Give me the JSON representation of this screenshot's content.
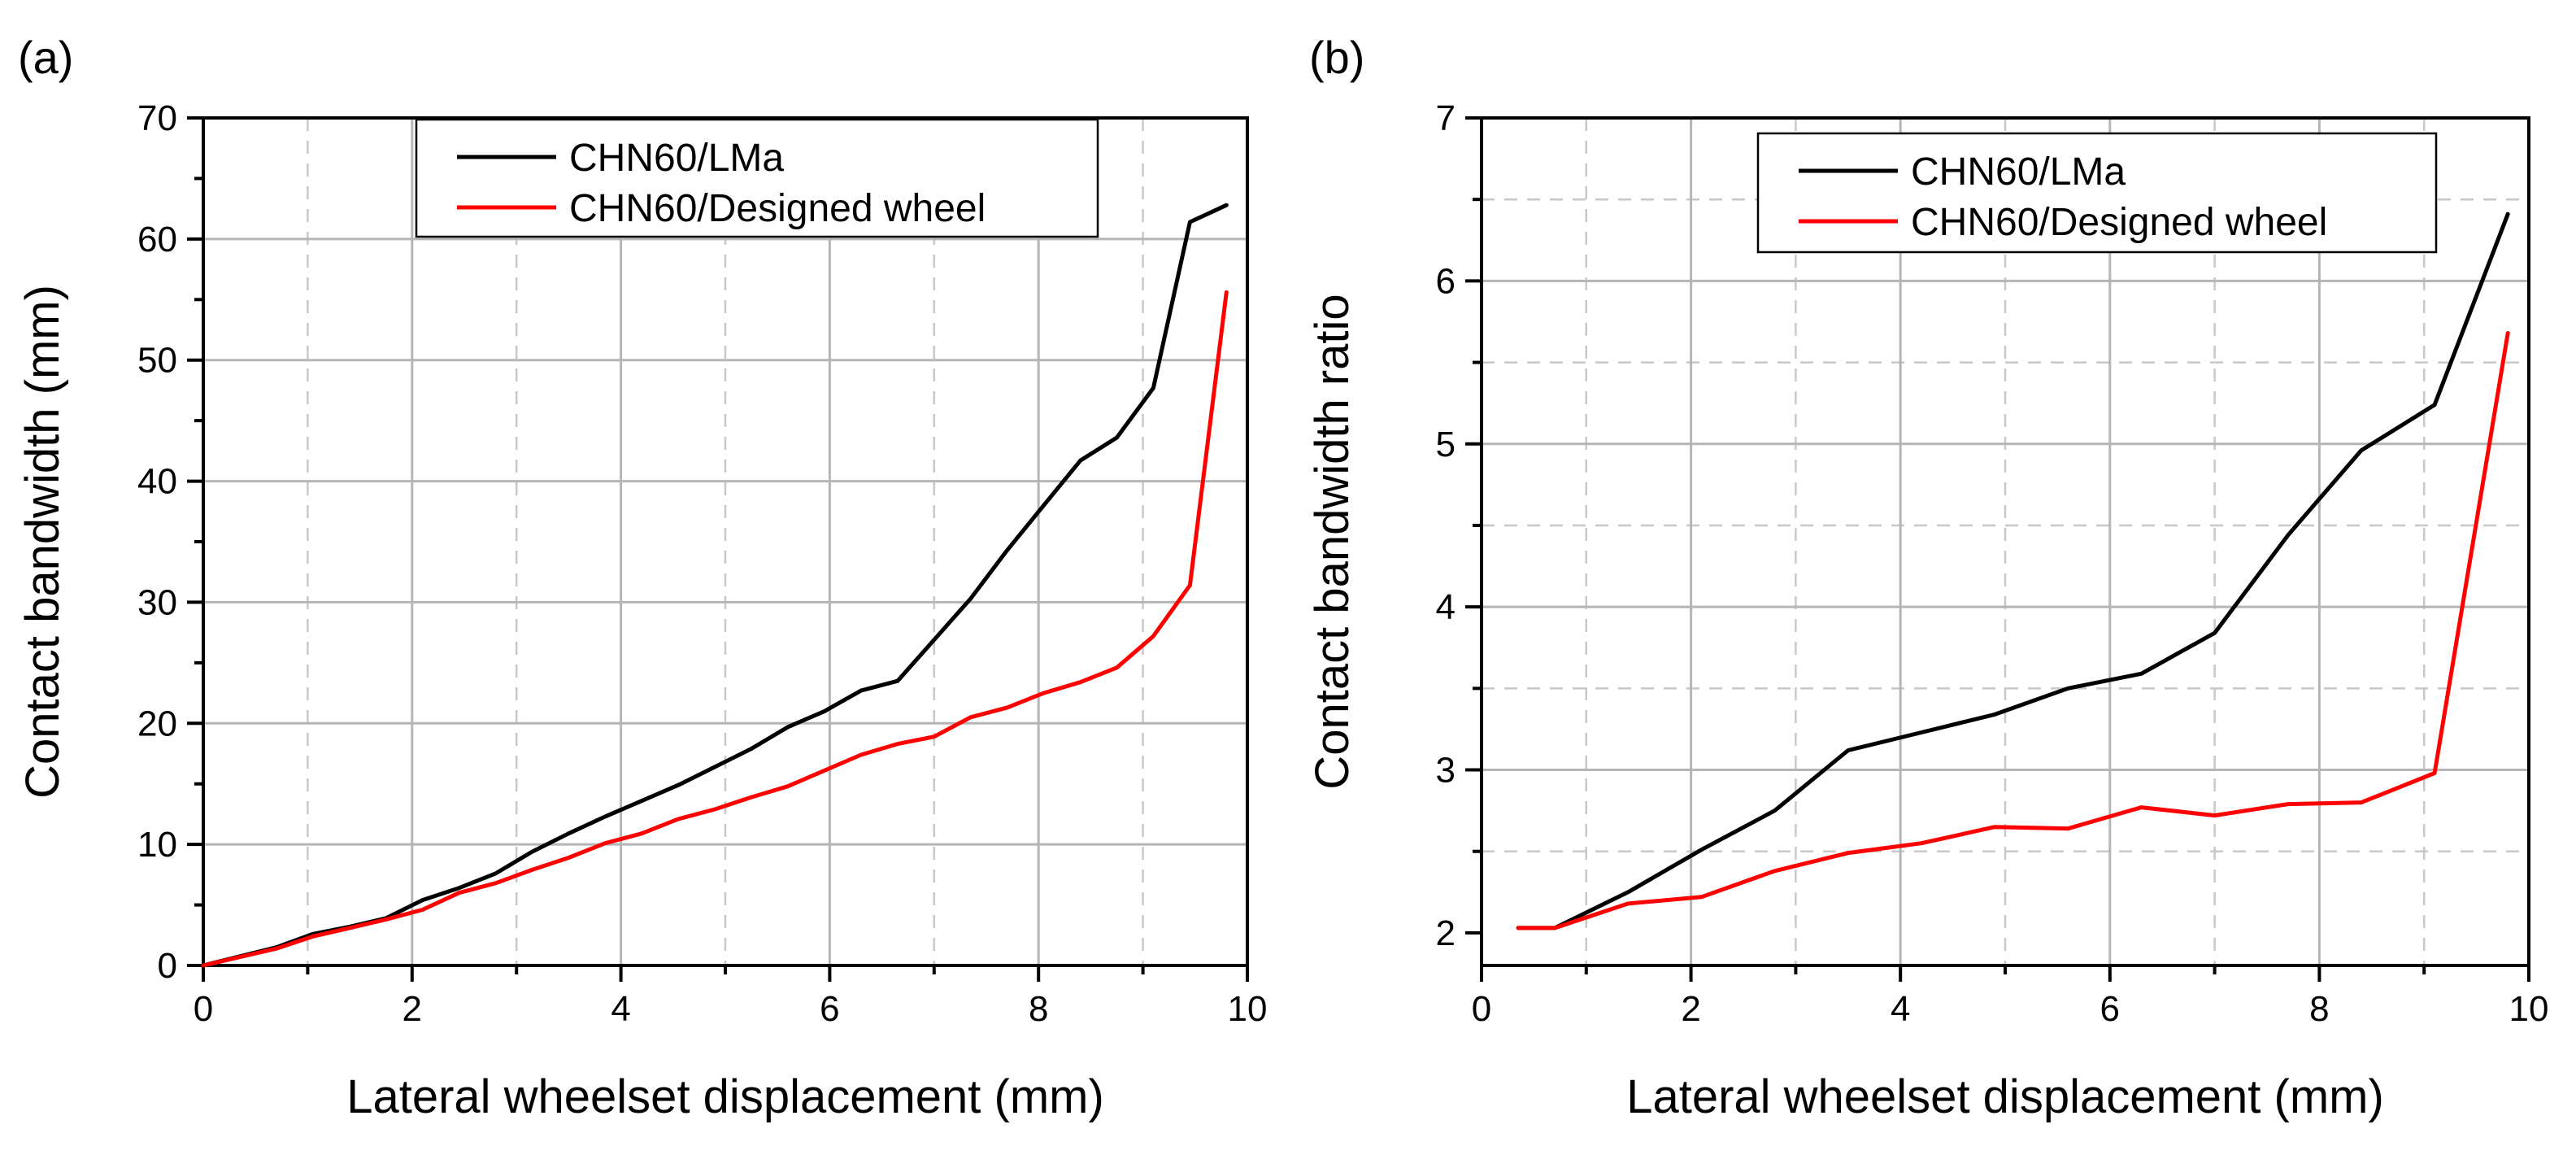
{
  "chart_data": [
    {
      "panel_label": "(a)",
      "type": "line",
      "title": "",
      "xlabel": "Lateral wheelset displacement (mm)",
      "ylabel": "Contact bandwidth (mm)",
      "xlim": [
        0,
        10
      ],
      "ylim": [
        0,
        70
      ],
      "x_ticks": [
        0,
        2,
        4,
        6,
        8,
        10
      ],
      "y_ticks": [
        0,
        10,
        20,
        30,
        40,
        50,
        60,
        70
      ],
      "x_major_grid": [
        2,
        4,
        6,
        8
      ],
      "x_minor_grid": [
        1,
        3,
        5,
        7,
        9
      ],
      "y_major_grid": [
        10,
        20,
        30,
        40,
        50,
        60
      ],
      "y_minor_grid": [],
      "grid": true,
      "legend_position": "top-center",
      "series": [
        {
          "name": "CHN60/LMa",
          "color": "#000000",
          "x": [
            0,
            0.7,
            1.05,
            1.4,
            1.75,
            2.1,
            2.45,
            2.8,
            3.15,
            3.5,
            3.85,
            4.2,
            4.55,
            4.9,
            5.25,
            5.6,
            5.95,
            6.3,
            6.65,
            7.0,
            7.35,
            7.7,
            8.05,
            8.4,
            8.75,
            9.1,
            9.45,
            9.8
          ],
          "y": [
            0,
            1.5,
            2.6,
            3.2,
            3.9,
            5.4,
            6.4,
            7.6,
            9.4,
            10.9,
            12.3,
            13.6,
            14.9,
            16.4,
            17.9,
            19.7,
            21.0,
            22.7,
            23.5,
            26.9,
            30.3,
            34.3,
            38.0,
            41.7,
            43.6,
            47.7,
            61.4,
            62.8
          ]
        },
        {
          "name": "CHN60/Designed wheel",
          "color": "#ff0000",
          "x": [
            0,
            0.7,
            1.05,
            1.4,
            1.75,
            2.1,
            2.45,
            2.8,
            3.15,
            3.5,
            3.85,
            4.2,
            4.55,
            4.9,
            5.25,
            5.6,
            5.95,
            6.3,
            6.65,
            7.0,
            7.35,
            7.7,
            8.05,
            8.4,
            8.75,
            9.1,
            9.45,
            9.8
          ],
          "y": [
            0,
            1.4,
            2.4,
            3.1,
            3.8,
            4.6,
            6.0,
            6.8,
            7.9,
            8.9,
            10.1,
            10.9,
            12.1,
            12.9,
            13.9,
            14.8,
            16.1,
            17.4,
            18.3,
            18.9,
            20.5,
            21.3,
            22.5,
            23.4,
            24.6,
            27.2,
            31.4,
            55.6
          ]
        }
      ]
    },
    {
      "panel_label": "(b)",
      "type": "line",
      "title": "",
      "xlabel": "Lateral wheelset displacement (mm)",
      "ylabel": "Contact bandwidth ratio",
      "xlim": [
        0,
        10
      ],
      "ylim": [
        1.8,
        7
      ],
      "x_ticks": [
        0,
        2,
        4,
        6,
        8,
        10
      ],
      "y_ticks": [
        2,
        3,
        4,
        5,
        6,
        7
      ],
      "x_major_grid": [
        2,
        4,
        6,
        8
      ],
      "x_minor_grid": [
        1,
        3,
        5,
        7,
        9
      ],
      "y_major_grid": [
        3,
        4,
        5,
        6
      ],
      "y_minor_grid": [
        2.5,
        3.5,
        4.5,
        5.5,
        6.5
      ],
      "grid": true,
      "legend_position": "top-center",
      "series": [
        {
          "name": "CHN60/LMa",
          "color": "#000000",
          "x": [
            0.35,
            0.7,
            1.4,
            2.1,
            2.8,
            3.5,
            4.2,
            4.9,
            5.6,
            6.3,
            7.0,
            7.7,
            8.4,
            9.1,
            9.8
          ],
          "y": [
            2.03,
            2.03,
            2.25,
            2.51,
            2.75,
            3.12,
            3.23,
            3.34,
            3.5,
            3.59,
            3.84,
            4.44,
            4.96,
            5.24,
            6.41
          ]
        },
        {
          "name": "CHN60/Designed wheel",
          "color": "#ff0000",
          "x": [
            0.35,
            0.7,
            1.4,
            2.1,
            2.8,
            3.5,
            4.2,
            4.9,
            5.6,
            6.3,
            7.0,
            7.7,
            8.4,
            9.1,
            9.8
          ],
          "y": [
            2.03,
            2.03,
            2.18,
            2.22,
            2.38,
            2.49,
            2.55,
            2.65,
            2.64,
            2.77,
            2.72,
            2.79,
            2.8,
            2.98,
            5.68
          ]
        }
      ]
    }
  ]
}
